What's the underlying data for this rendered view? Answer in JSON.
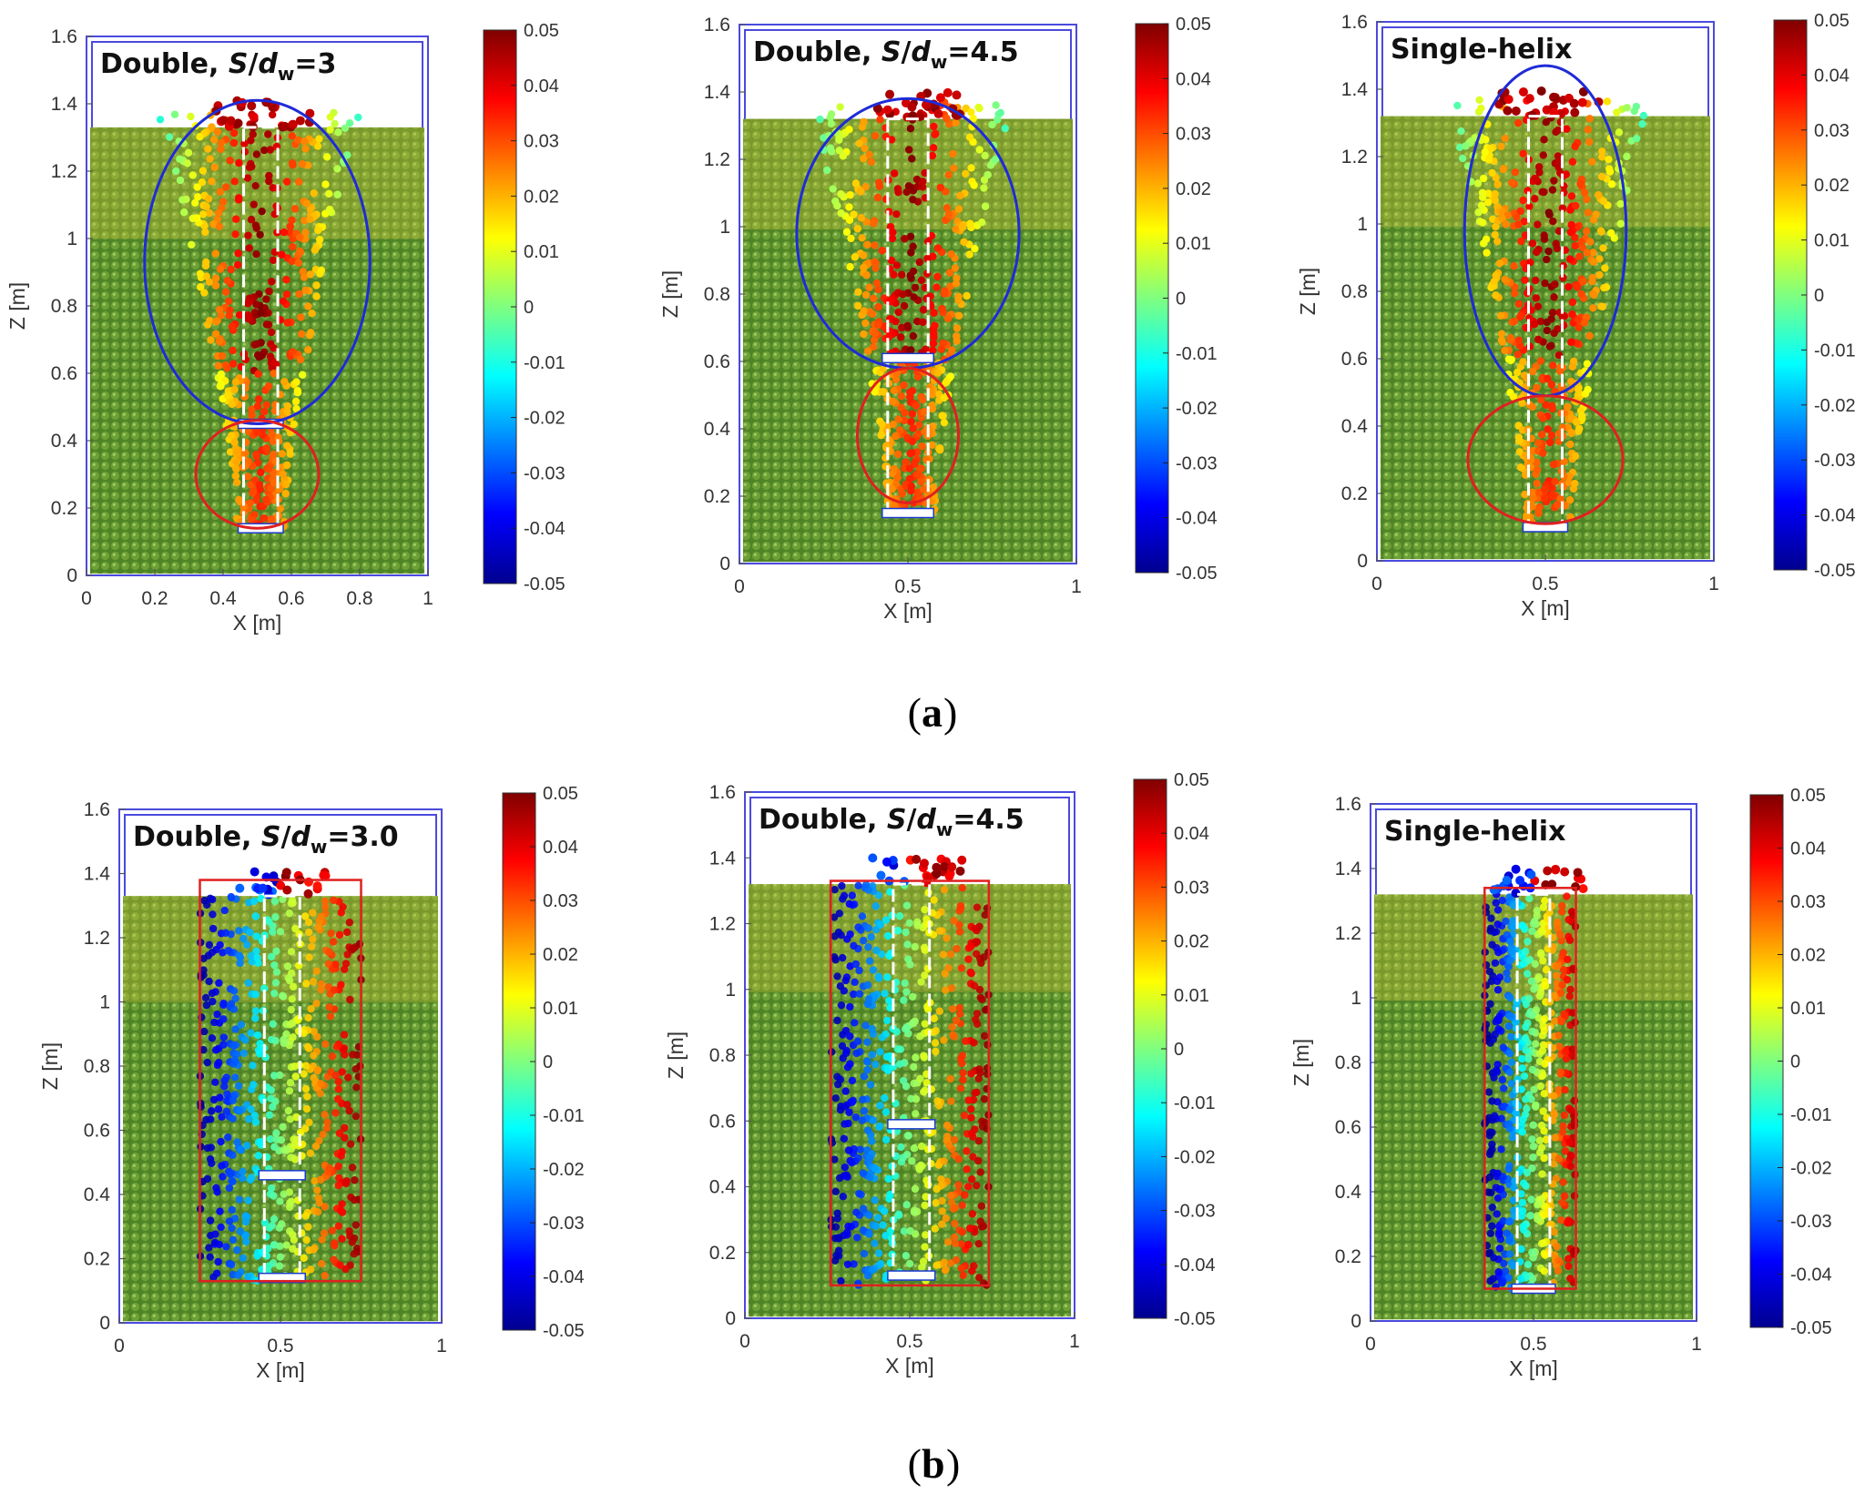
{
  "figure": {
    "captions": [
      {
        "open": "(",
        "letter": "a",
        "close": ")"
      },
      {
        "open": "(",
        "letter": "b",
        "close": ")"
      }
    ]
  },
  "colors": {
    "soil": "#5b8f2c",
    "soil_light": "#7fb042",
    "frame": "#4a4adf",
    "ellipse_blue": "#1f2bd6",
    "outline_red": "#e02020",
    "pile_dash": "#ffffff"
  },
  "chart_data": [
    {
      "type": "heatmap",
      "row": "a",
      "id": "a1",
      "title": {
        "pre": "Double, ",
        "S": "S",
        "slash": "/",
        "d": "d",
        "sub": "w",
        "post": "=3"
      },
      "xlabel": "X [m]",
      "ylabel": "Z [m]",
      "xlim": [
        0,
        1
      ],
      "ylim": [
        0,
        1.6
      ],
      "xticks": [
        "0",
        "0.2",
        "0.4",
        "0.6",
        "0.8",
        "1"
      ],
      "xtick_values": [
        0,
        0.2,
        0.4,
        0.6,
        0.8,
        1
      ],
      "yticks": [
        "0",
        "0.2",
        "0.4",
        "0.6",
        "0.8",
        "1",
        "1.2",
        "1.4",
        "1.6"
      ],
      "ytick_values": [
        0,
        0.2,
        0.4,
        0.6,
        0.8,
        1,
        1.2,
        1.4,
        1.6
      ],
      "soil_surface": 1.33,
      "pile": {
        "x_min": 0.46,
        "x_max": 0.56,
        "z_min": 0.14,
        "z_max": 1.33
      },
      "plates_z": [
        0.45,
        0.14
      ],
      "colorbar": {
        "min": -0.05,
        "max": 0.05,
        "ticks": [
          "0.05",
          "0.04",
          "0.03",
          "0.02",
          "0.01",
          "0",
          "-0.01",
          "-0.02",
          "-0.03",
          "-0.04",
          "-0.05"
        ]
      },
      "ellipses": [
        {
          "color": "blue",
          "cx": 0.5,
          "cz": 0.93,
          "rx": 0.33,
          "rz": 0.48
        },
        {
          "color": "red",
          "cx": 0.5,
          "cz": 0.3,
          "rx": 0.18,
          "rz": 0.16
        }
      ]
    },
    {
      "type": "heatmap",
      "row": "a",
      "id": "a2",
      "title": {
        "pre": "Double, ",
        "S": "S",
        "slash": "/",
        "d": "d",
        "sub": "w",
        "post": "=4.5"
      },
      "xlabel": "X [m]",
      "ylabel": "Z [m]",
      "xlim": [
        0,
        1
      ],
      "ylim": [
        0,
        1.6
      ],
      "xticks": [
        "0",
        "0.5",
        "1"
      ],
      "xtick_values": [
        0,
        0.5,
        1
      ],
      "yticks": [
        "0",
        "0.2",
        "0.4",
        "0.6",
        "0.8",
        "1",
        "1.2",
        "1.4",
        "1.6"
      ],
      "ytick_values": [
        0,
        0.2,
        0.4,
        0.6,
        0.8,
        1,
        1.2,
        1.4,
        1.6
      ],
      "soil_surface": 1.32,
      "pile": {
        "x_min": 0.44,
        "x_max": 0.56,
        "z_min": 0.15,
        "z_max": 1.32
      },
      "plates_z": [
        0.61,
        0.15
      ],
      "colorbar": {
        "min": -0.05,
        "max": 0.05,
        "ticks": [
          "0.05",
          "0.04",
          "0.03",
          "0.02",
          "0.01",
          "0",
          "-0.01",
          "-0.02",
          "-0.03",
          "-0.04",
          "-0.05"
        ]
      },
      "ellipses": [
        {
          "color": "blue",
          "cx": 0.5,
          "cz": 0.98,
          "rx": 0.33,
          "rz": 0.4
        },
        {
          "color": "red",
          "cx": 0.5,
          "cz": 0.38,
          "rx": 0.15,
          "rz": 0.2
        }
      ]
    },
    {
      "type": "heatmap",
      "row": "a",
      "id": "a3",
      "title": {
        "pre": "Single-helix",
        "S": "",
        "slash": "",
        "d": "",
        "sub": "",
        "post": ""
      },
      "xlabel": "X [m]",
      "ylabel": "Z [m]",
      "xlim": [
        0,
        1
      ],
      "ylim": [
        0,
        1.6
      ],
      "xticks": [
        "0",
        "0.5",
        "1"
      ],
      "xtick_values": [
        0,
        0.5,
        1
      ],
      "yticks": [
        "0",
        "0.2",
        "0.4",
        "0.6",
        "0.8",
        "1",
        "1.2",
        "1.4",
        "1.6"
      ],
      "ytick_values": [
        0,
        0.2,
        0.4,
        0.6,
        0.8,
        1,
        1.2,
        1.4,
        1.6
      ],
      "soil_surface": 1.32,
      "pile": {
        "x_min": 0.45,
        "x_max": 0.55,
        "z_min": 0.1,
        "z_max": 1.32
      },
      "plates_z": [
        0.1
      ],
      "colorbar": {
        "min": -0.05,
        "max": 0.05,
        "ticks": [
          "0.05",
          "0.04",
          "0.03",
          "0.02",
          "0.01",
          "0",
          "-0.01",
          "-0.02",
          "-0.03",
          "-0.04",
          "-0.05"
        ]
      },
      "ellipses": [
        {
          "color": "blue",
          "cx": 0.5,
          "cz": 0.98,
          "rx": 0.24,
          "rz": 0.49
        },
        {
          "color": "red",
          "cx": 0.5,
          "cz": 0.3,
          "rx": 0.23,
          "rz": 0.19
        }
      ]
    },
    {
      "type": "heatmap",
      "row": "b",
      "id": "b1",
      "title": {
        "pre": "Double, ",
        "S": "S",
        "slash": "/",
        "d": "d",
        "sub": "w",
        "post": "=3.0"
      },
      "xlabel": "X [m]",
      "ylabel": "Z [m]",
      "xlim": [
        0,
        1
      ],
      "ylim": [
        0,
        1.6
      ],
      "xticks": [
        "0",
        "0.5",
        "1"
      ],
      "xtick_values": [
        0,
        0.5,
        1
      ],
      "yticks": [
        "0",
        "0.2",
        "0.4",
        "0.6",
        "0.8",
        "1",
        "1.2",
        "1.4",
        "1.6"
      ],
      "ytick_values": [
        0,
        0.2,
        0.4,
        0.6,
        0.8,
        1,
        1.2,
        1.4,
        1.6
      ],
      "soil_surface": 1.33,
      "pile": {
        "x_min": 0.45,
        "x_max": 0.56,
        "z_min": 0.14,
        "z_max": 1.33
      },
      "plates_z": [
        0.46,
        0.14
      ],
      "colorbar": {
        "min": -0.05,
        "max": 0.05,
        "ticks": [
          "0.05",
          "0.04",
          "0.03",
          "0.02",
          "0.01",
          "0",
          "-0.01",
          "-0.02",
          "-0.03",
          "-0.04",
          "-0.05"
        ]
      },
      "boxes": [
        {
          "color": "red",
          "x_min": 0.25,
          "x_max": 0.75,
          "z_min": 0.13,
          "z_max": 1.38
        }
      ]
    },
    {
      "type": "heatmap",
      "row": "b",
      "id": "b2",
      "title": {
        "pre": "Double, ",
        "S": "S",
        "slash": "/",
        "d": "d",
        "sub": "w",
        "post": "=4.5"
      },
      "xlabel": "X [m]",
      "ylabel": "Z [m]",
      "xlim": [
        0,
        1
      ],
      "ylim": [
        0,
        1.6
      ],
      "xticks": [
        "0",
        "0.5",
        "1"
      ],
      "xtick_values": [
        0,
        0.5,
        1
      ],
      "yticks": [
        "0",
        "0.2",
        "0.4",
        "0.6",
        "0.8",
        "1",
        "1.2",
        "1.4",
        "1.6"
      ],
      "ytick_values": [
        0,
        0.2,
        0.4,
        0.6,
        0.8,
        1,
        1.2,
        1.4,
        1.6
      ],
      "soil_surface": 1.32,
      "pile": {
        "x_min": 0.45,
        "x_max": 0.56,
        "z_min": 0.13,
        "z_max": 1.32
      },
      "plates_z": [
        0.59,
        0.13
      ],
      "colorbar": {
        "min": -0.05,
        "max": 0.05,
        "ticks": [
          "0.05",
          "0.04",
          "0.03",
          "0.02",
          "0.01",
          "0",
          "-0.01",
          "-0.02",
          "-0.03",
          "-0.04",
          "-0.05"
        ]
      },
      "boxes": [
        {
          "color": "red",
          "x_min": 0.26,
          "x_max": 0.74,
          "z_min": 0.1,
          "z_max": 1.33
        }
      ]
    },
    {
      "type": "heatmap",
      "row": "b",
      "id": "b3",
      "title": {
        "pre": "Single-helix",
        "S": "",
        "slash": "",
        "d": "",
        "sub": "",
        "post": ""
      },
      "xlabel": "X [m]",
      "ylabel": "Z [m]",
      "xlim": [
        0,
        1
      ],
      "ylim": [
        0,
        1.6
      ],
      "xticks": [
        "0",
        "0.5",
        "1"
      ],
      "xtick_values": [
        0,
        0.5,
        1
      ],
      "yticks": [
        "0",
        "0.2",
        "0.4",
        "0.6",
        "0.8",
        "1",
        "1.2",
        "1.4",
        "1.6"
      ],
      "ytick_values": [
        0,
        0.2,
        0.4,
        0.6,
        0.8,
        1,
        1.2,
        1.4,
        1.6
      ],
      "soil_surface": 1.32,
      "pile": {
        "x_min": 0.45,
        "x_max": 0.55,
        "z_min": 0.1,
        "z_max": 1.32
      },
      "plates_z": [
        0.1
      ],
      "colorbar": {
        "min": -0.05,
        "max": 0.05,
        "ticks": [
          "0.05",
          "0.04",
          "0.03",
          "0.02",
          "0.01",
          "0",
          "-0.01",
          "-0.02",
          "-0.03",
          "-0.04",
          "-0.05"
        ]
      },
      "boxes": [
        {
          "color": "red",
          "x_min": 0.35,
          "x_max": 0.63,
          "z_min": 0.1,
          "z_max": 1.34
        }
      ]
    }
  ]
}
